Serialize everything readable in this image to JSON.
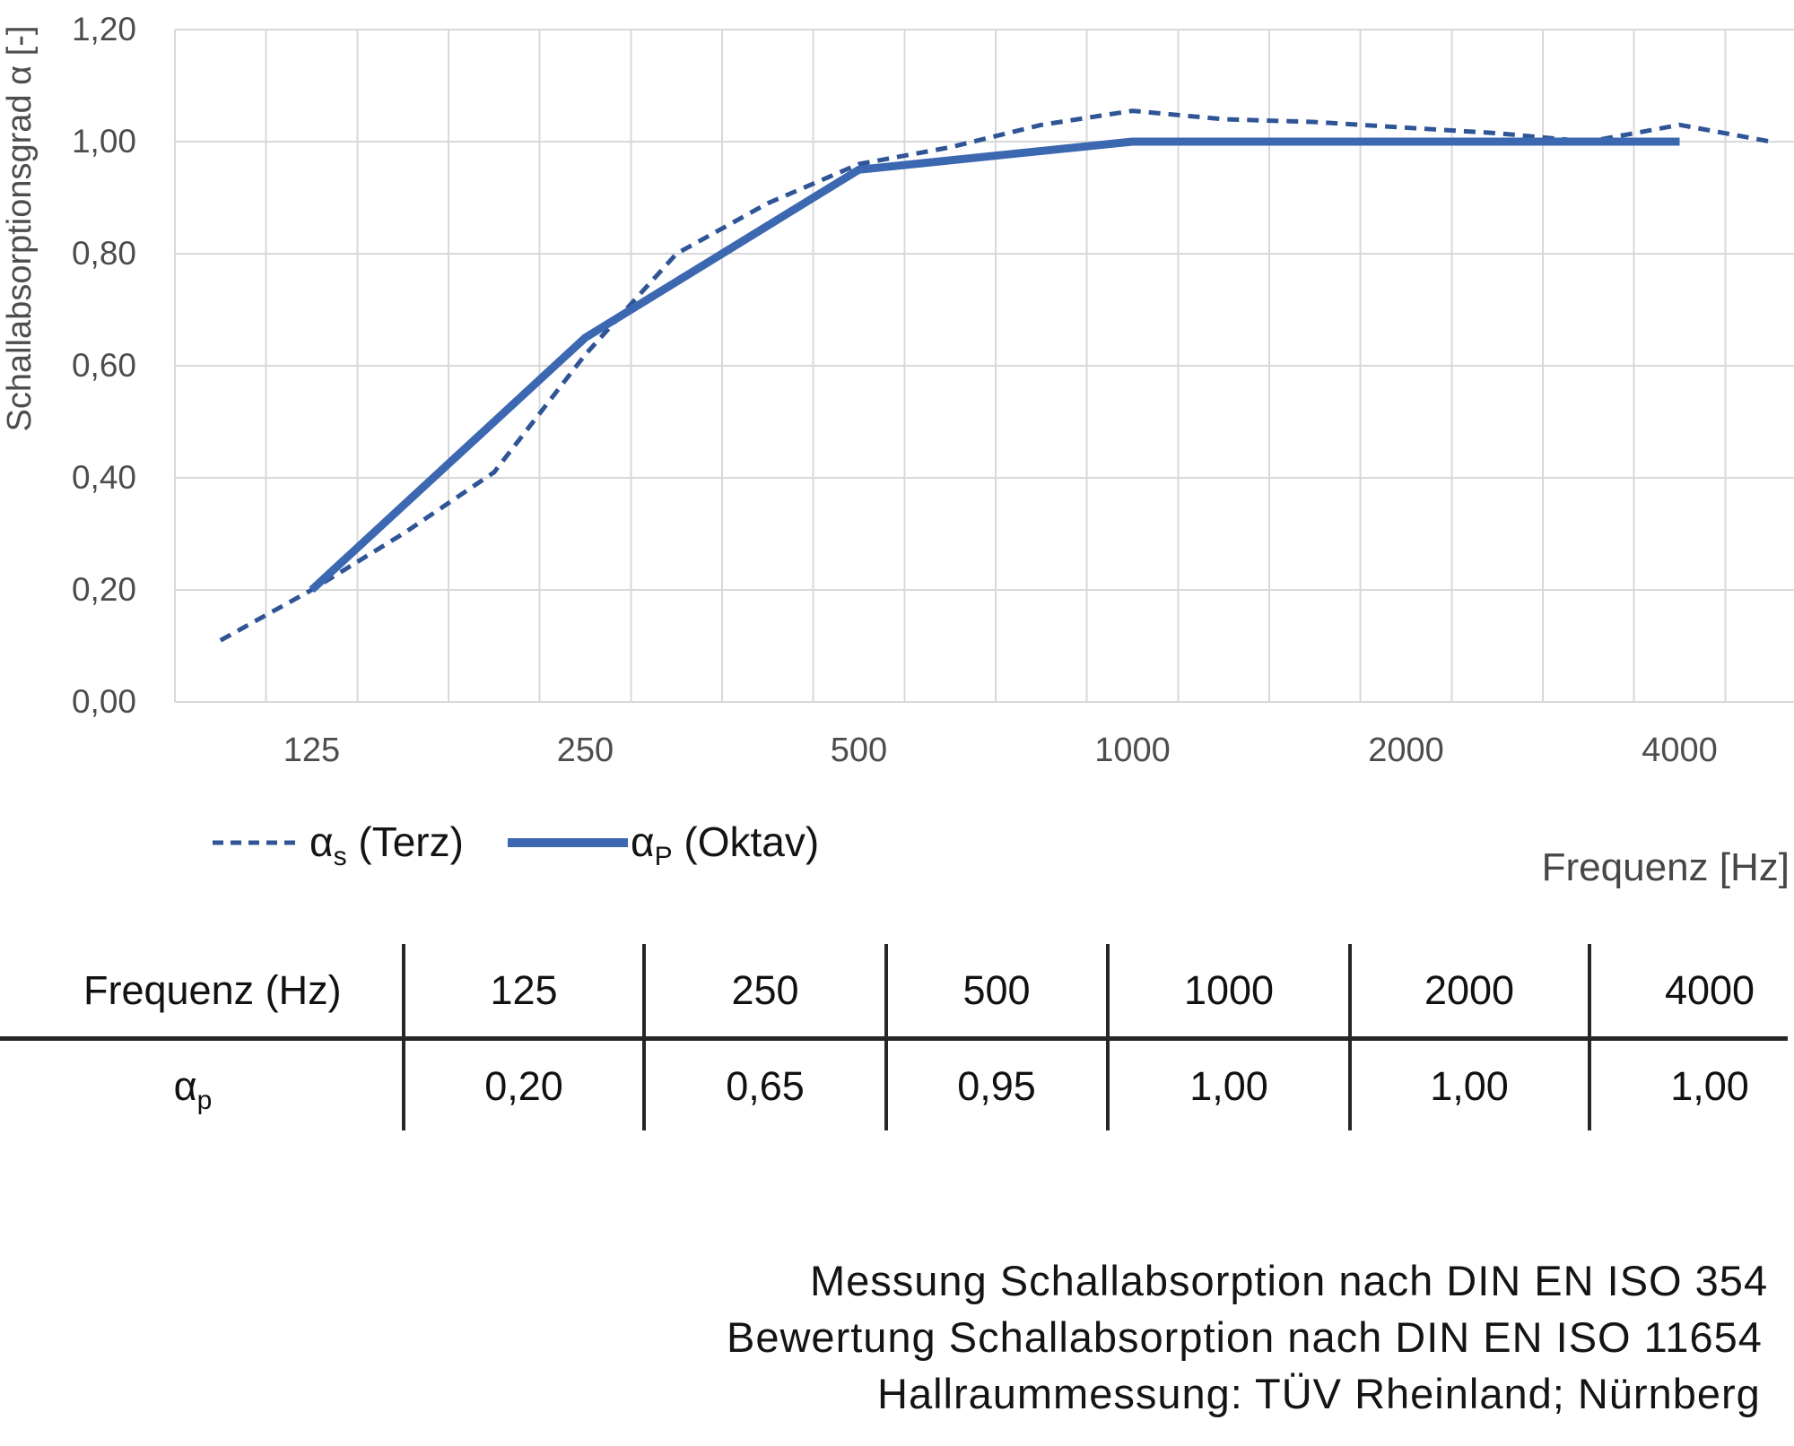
{
  "chart_data": {
    "type": "line",
    "title": "",
    "xlabel": "Frequenz [Hz]",
    "ylabel": "Schallabsorptionsgrad α [-]",
    "ylim": [
      0,
      1.2
    ],
    "y_tick_step": 0.2,
    "y_ticks": [
      "0,00",
      "0,20",
      "0,40",
      "0,60",
      "0,80",
      "1,00",
      "1,20"
    ],
    "grid": true,
    "legend_position": "bottom-left",
    "x": [
      100,
      125,
      160,
      200,
      250,
      315,
      400,
      500,
      630,
      800,
      1000,
      1250,
      1600,
      2000,
      2500,
      3150,
      4000,
      5000
    ],
    "x_octave_labels": [
      {
        "label": "125",
        "index": 1
      },
      {
        "label": "250",
        "index": 4
      },
      {
        "label": "500",
        "index": 7
      },
      {
        "label": "1000",
        "index": 10
      },
      {
        "label": "2000",
        "index": 13
      },
      {
        "label": "4000",
        "index": 16
      }
    ],
    "series": [
      {
        "name": "αs (Terz)",
        "name_parts": {
          "base": "α",
          "sub": "s",
          "rest": " (Terz)"
        },
        "style": "dashed",
        "color": "#2F5597",
        "values": [
          0.11,
          0.2,
          0.3,
          0.41,
          0.62,
          0.8,
          0.89,
          0.96,
          0.99,
          1.03,
          1.055,
          1.04,
          1.035,
          1.025,
          1.015,
          1.0,
          1.03,
          1.0
        ]
      },
      {
        "name": "αP (Oktav)",
        "name_parts": {
          "base": "α",
          "sub": "P",
          "rest": " (Oktav)"
        },
        "style": "solid",
        "color": "#3C68B1",
        "x_indices": [
          1,
          4,
          7,
          10,
          13,
          16
        ],
        "values": [
          0.2,
          0.65,
          0.95,
          1.0,
          1.0,
          1.0
        ]
      }
    ]
  },
  "table": {
    "header_label": "Frequenz (Hz)",
    "frequencies": [
      "125",
      "250",
      "500",
      "1000",
      "2000",
      "4000"
    ],
    "row_label_parts": {
      "base": "α",
      "sub": "p"
    },
    "values": [
      "0,20",
      "0,65",
      "0,95",
      "1,00",
      "1,00",
      "1,00"
    ]
  },
  "footer": {
    "lines": [
      "Messung Schallabsorption nach DIN EN ISO 354",
      "Bewertung Schallabsorption nach DIN EN ISO 11654",
      "Hallraummessung: TÜV Rheinland; Nürnberg"
    ]
  },
  "colors": {
    "terz_blue": "#2F5597",
    "oktav_blue": "#3C68B1",
    "grid": "#D8D8D8",
    "axis_text": "#4D4D4D",
    "text": "#141414",
    "table_line": "#262626"
  }
}
